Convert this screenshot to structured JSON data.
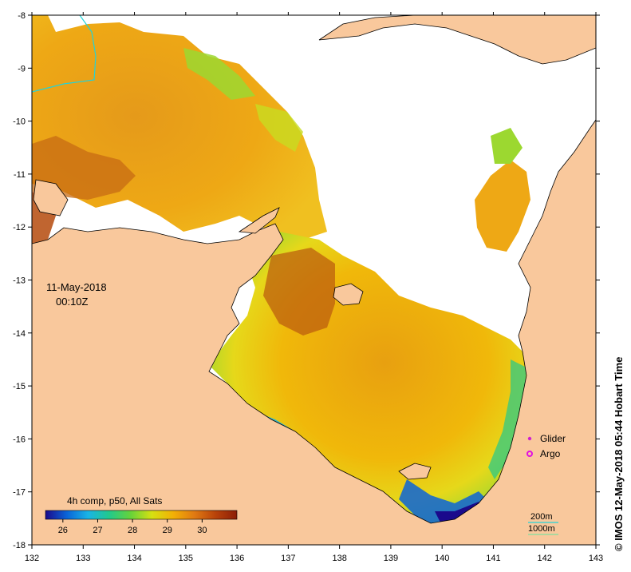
{
  "map": {
    "lon_ticks": [
      "132",
      "133",
      "134",
      "135",
      "136",
      "137",
      "138",
      "139",
      "140",
      "141",
      "142",
      "143"
    ],
    "lat_ticks": [
      "-8",
      "-9",
      "-10",
      "-11",
      "-12",
      "-13",
      "-14",
      "-15",
      "-16",
      "-17",
      "-18"
    ],
    "lon_range": [
      132,
      143
    ],
    "lat_range": [
      -18,
      -8
    ],
    "date_label": "11-May-2018",
    "time_label": "00:10Z",
    "credit": "© IMOS 12-May-2018 05:44 Hobart Time",
    "colors": {
      "land": "#f9c89c",
      "no_data": "#ffffff",
      "coast": "#000000",
      "isobath_200": "#22d3d8",
      "isobath_1000": "#7fe0a0"
    }
  },
  "colorbar": {
    "title": "4h comp, p50, All Sats",
    "tick_labels": [
      "26",
      "27",
      "28",
      "29",
      "30"
    ],
    "range": [
      25.5,
      31
    ],
    "stops": [
      "#1a0a8c",
      "#0a64d8",
      "#19b4e6",
      "#22c98c",
      "#66d23a",
      "#d6e012",
      "#f2b005",
      "#e07a12",
      "#b8420a",
      "#8c1e08"
    ]
  },
  "legend": {
    "glider_label": "Glider",
    "argo_label": "Argo",
    "glider_color": "#d020d0",
    "argo_color": "#e010e0",
    "isobath_200_label": "200m",
    "isobath_1000_label": "1000m"
  }
}
